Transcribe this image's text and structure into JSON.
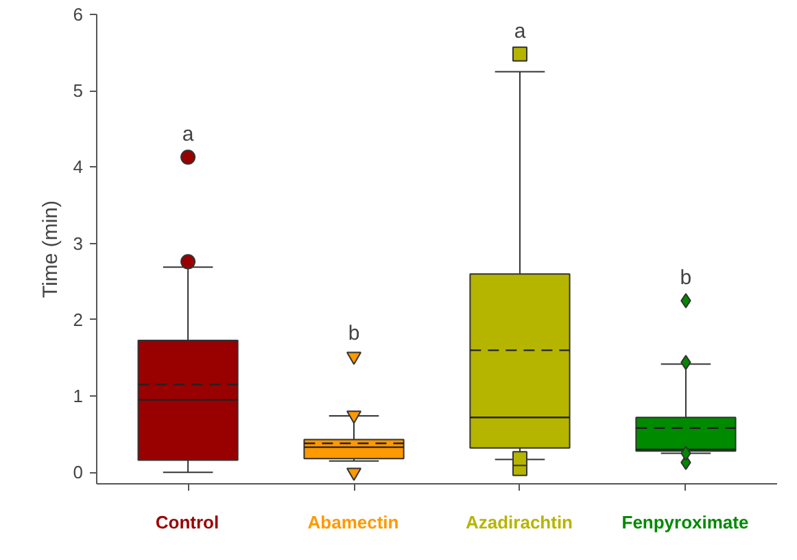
{
  "chart_data": {
    "type": "box",
    "ylabel": "Time (min)",
    "categories": [
      "Control",
      "Abamectin",
      "Azadirachtin",
      "Fenpyroximate"
    ],
    "ylim": [
      -0.15,
      6
    ],
    "yticks": [
      0,
      1,
      2,
      3,
      4,
      5,
      6
    ],
    "grid": false,
    "series": [
      {
        "color": "#990000",
        "marker": "circle",
        "boxes": [
          {
            "low": 0,
            "q1": 0.16,
            "median": 0.95,
            "q3": 1.73,
            "high": 2.69,
            "mean": 1.15,
            "outliers": [
              2.76,
              4.13
            ]
          },
          null,
          null,
          null
        ]
      },
      {
        "color": "#ff9900",
        "marker": "triangle",
        "boxes": [
          null,
          {
            "low": 0.15,
            "q1": 0.18,
            "median": 0.33,
            "q3": 0.43,
            "high": 0.74,
            "mean": 0.38,
            "outliers": [
              0.0,
              0.75,
              1.52
            ]
          },
          null,
          null
        ]
      },
      {
        "color": "#b5b500",
        "marker": "square",
        "boxes": [
          null,
          null,
          {
            "low": 0.17,
            "q1": 0.32,
            "median": 0.72,
            "q3": 2.6,
            "high": 5.25,
            "mean": 1.6,
            "outliers": [
              0.05,
              0.18,
              5.48
            ]
          },
          null
        ]
      },
      {
        "color": "#008a00",
        "marker": "diamond",
        "boxes": [
          null,
          null,
          null,
          {
            "low": 0.25,
            "q1": 0.28,
            "median": 0.3,
            "q3": 0.72,
            "high": 1.42,
            "mean": 0.58,
            "outliers": [
              0.13,
              0.25,
              1.44,
              2.25
            ]
          }
        ]
      }
    ],
    "annotations": [
      "a",
      "b",
      "a",
      "b"
    ]
  }
}
